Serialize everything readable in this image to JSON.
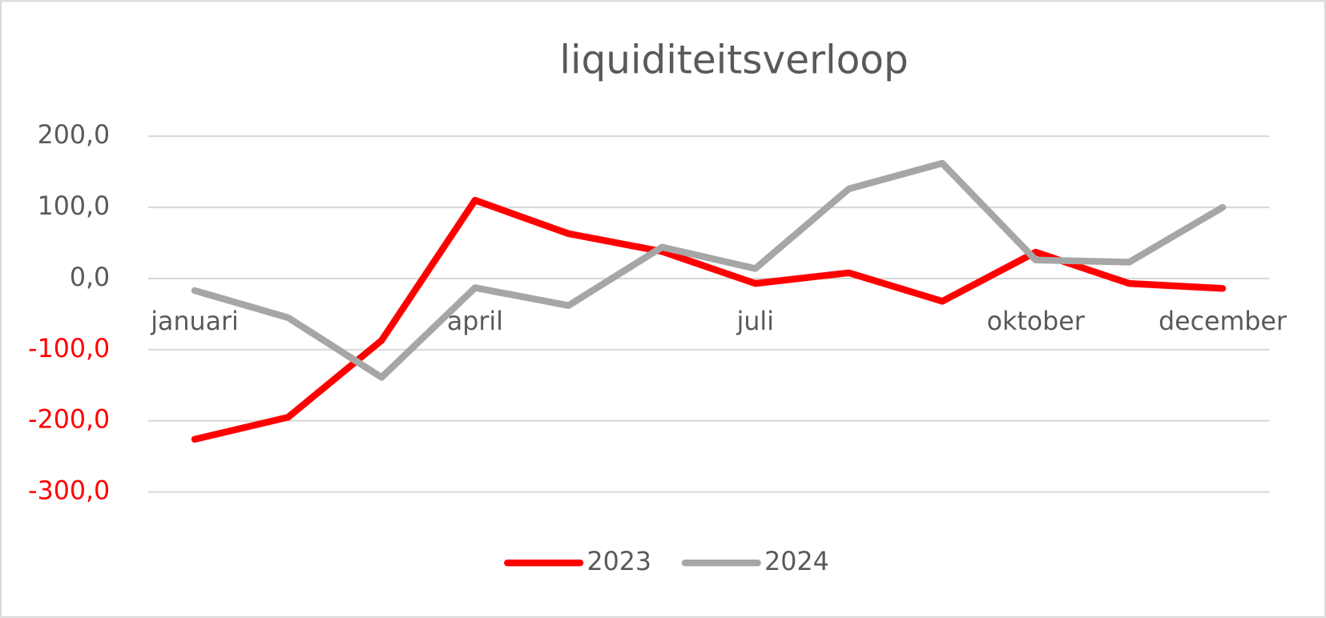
{
  "chart_data": {
    "type": "line",
    "title": "liquiditeitsverloop",
    "categories": [
      "januari",
      null,
      null,
      "april",
      null,
      null,
      "juli",
      null,
      null,
      "oktober",
      null,
      "december"
    ],
    "series": [
      {
        "name": "2023",
        "color": "#ff0000",
        "values": [
          -226,
          -195,
          -87,
          110,
          63,
          38,
          -7,
          8,
          -32,
          37,
          -7,
          -14
        ]
      },
      {
        "name": "2024",
        "color": "#a6a6a6",
        "values": [
          -17,
          -55,
          -139,
          -13,
          -38,
          44,
          14,
          126,
          162,
          26,
          23,
          100
        ]
      }
    ],
    "ylim": [
      -300,
      200
    ],
    "yticks": [
      {
        "value": 200,
        "label": "200,0"
      },
      {
        "value": 100,
        "label": "100,0"
      },
      {
        "value": 0,
        "label": "0,0"
      },
      {
        "value": -100,
        "label": "-100,0"
      },
      {
        "value": -200,
        "label": "-200,0"
      },
      {
        "value": -300,
        "label": "-300,0"
      }
    ],
    "negative_tick_color": "#ff0000",
    "grid": true,
    "legend": "bottom"
  }
}
